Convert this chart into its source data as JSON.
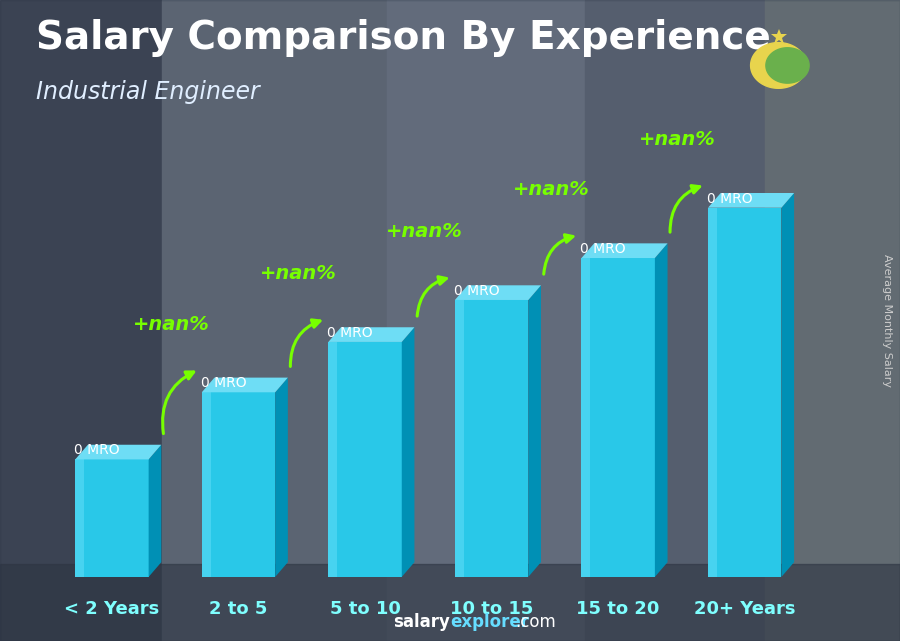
{
  "title": "Salary Comparison By Experience",
  "subtitle": "Industrial Engineer",
  "ylabel": "Average Monthly Salary",
  "categories": [
    "< 2 Years",
    "2 to 5",
    "5 to 10",
    "10 to 15",
    "15 to 20",
    "20+ Years"
  ],
  "bar_labels": [
    "0 MRO",
    "0 MRO",
    "0 MRO",
    "0 MRO",
    "0 MRO",
    "0 MRO"
  ],
  "change_labels": [
    "+nan%",
    "+nan%",
    "+nan%",
    "+nan%",
    "+nan%"
  ],
  "bar_front_color": "#29c8e8",
  "bar_top_color": "#6eddf5",
  "bar_side_color": "#0090b5",
  "bar_highlight_color": "#80e8ff",
  "change_color": "#77ff00",
  "title_color": "#ffffff",
  "subtitle_color": "#e0eeff",
  "label_color": "#ffffff",
  "bg_left": "#5a6a7a",
  "bg_mid": "#7a8a9a",
  "bg_right": "#6a7a8a",
  "flag_green": "#6ab04c",
  "flag_gold": "#e8d44d",
  "title_fontsize": 28,
  "subtitle_fontsize": 17,
  "cat_fontsize": 13,
  "bar_label_fontsize": 10,
  "change_fontsize": 14,
  "watermark_salary_color": "#ffffff",
  "watermark_explorer_color": "#66ddff",
  "watermark_fontsize": 12,
  "ylabel_fontsize": 8,
  "bar_heights": [
    0.28,
    0.44,
    0.56,
    0.66,
    0.76,
    0.88
  ],
  "bar_positions": [
    0,
    1,
    2,
    3,
    4,
    5
  ],
  "xlim": [
    -0.6,
    5.8
  ],
  "ylim": [
    0,
    1.1
  ]
}
